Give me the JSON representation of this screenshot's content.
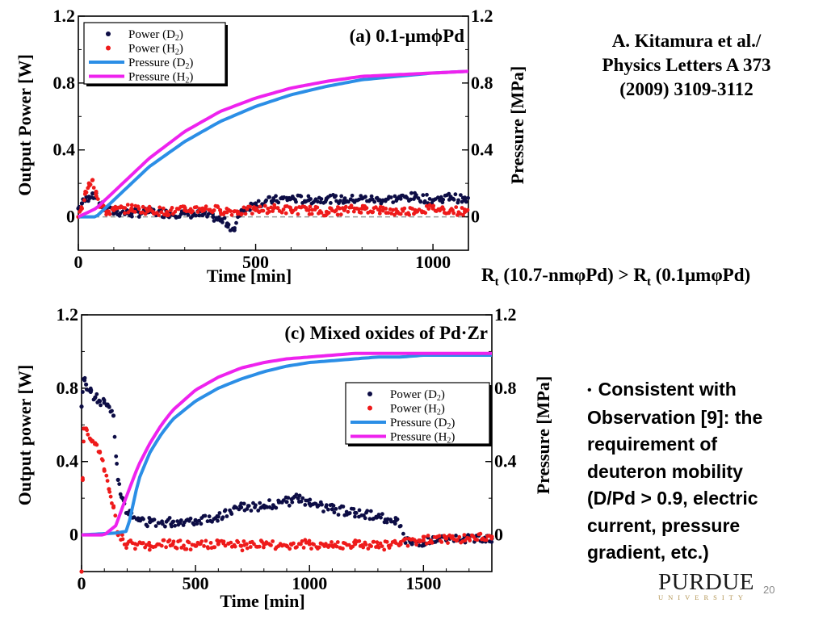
{
  "citation": {
    "line1": "A. Kitamura et al./",
    "line2": "Physics Letters A 373",
    "line3": "(2009) 3109-3112"
  },
  "comparison": {
    "r1": "R",
    "sub1": "t",
    "rest1": " (10.7-nmφPd) > R",
    "sub2": "t",
    "rest2": " (0.1μmφPd)"
  },
  "bullet": {
    "dot": "•",
    "lines": [
      "Consistent with",
      "Observation [9]: the",
      "requirement of",
      "deuteron mobility",
      "(D/Pd > 0.9,  electric",
      "current, pressure",
      "gradient, etc.)"
    ]
  },
  "logo": {
    "name": "PURDUE",
    "sub": "UNIVERSITY"
  },
  "page_number": "20",
  "colors": {
    "power_d2": "#0d0d45",
    "power_h2": "#ee1a1a",
    "pressure_d2": "#2b8ee6",
    "pressure_h2": "#ee22ee"
  },
  "chart_data": [
    {
      "type": "scatter",
      "title": "(a) 0.1-μmϕPd",
      "xlabel": "Time [min]",
      "ylabel": "Output Power [W]",
      "ylabel_right": "Pressure [MPa]",
      "xlim": [
        0,
        1100
      ],
      "ylim": [
        -0.2,
        1.2
      ],
      "xticks": [
        "0",
        "500",
        "1000"
      ],
      "xtick_values": [
        0,
        500,
        1000
      ],
      "yticks": [
        "0",
        "0.4",
        "0.8",
        "1.2"
      ],
      "ytick_values": [
        0,
        0.4,
        0.8,
        1.2
      ],
      "yticks_right": [
        "0",
        "0.4",
        "0.8",
        "1.2"
      ],
      "legend": {
        "placement": "top-left",
        "entries": [
          {
            "main": "Power (D",
            "sub": "2",
            "end": ")",
            "kind": "dot",
            "color": "#0d0d45"
          },
          {
            "main": "Power (H",
            "sub": "2",
            "end": ")",
            "kind": "dot",
            "color": "#ee1a1a"
          },
          {
            "main": "Pressure (D",
            "sub": "2",
            "end": ")",
            "kind": "line",
            "color": "#2b8ee6"
          },
          {
            "main": "Pressure (H",
            "sub": "2",
            "end": ")",
            "kind": "line",
            "color": "#ee22ee"
          }
        ]
      },
      "zero_line": true,
      "series": [
        {
          "name": "Power (D2)",
          "kind": "scatter",
          "color": "#0d0d45",
          "x": [
            0,
            10,
            20,
            30,
            40,
            50,
            60,
            80,
            100,
            150,
            200,
            250,
            300,
            350,
            380,
            400,
            420,
            440,
            460,
            500,
            550,
            600,
            650,
            700,
            750,
            800,
            850,
            900,
            950,
            1000,
            1050,
            1090
          ],
          "y": [
            0.05,
            0.08,
            0.1,
            0.12,
            0.14,
            0.12,
            0.08,
            0.04,
            0.03,
            0.02,
            0.03,
            0.02,
            0.02,
            0.01,
            0.0,
            -0.02,
            -0.04,
            -0.08,
            0.04,
            0.08,
            0.1,
            0.11,
            0.1,
            0.11,
            0.1,
            0.11,
            0.1,
            0.11,
            0.12,
            0.1,
            0.12,
            0.1
          ]
        },
        {
          "name": "Power (H2)",
          "kind": "scatter",
          "color": "#ee1a1a",
          "x": [
            0,
            10,
            20,
            30,
            40,
            50,
            60,
            80,
            100,
            150,
            200,
            250,
            300,
            350,
            400,
            450,
            500,
            550,
            600,
            650,
            700,
            750,
            800,
            850,
            900,
            950,
            1000,
            1050,
            1090
          ],
          "y": [
            0.0,
            0.05,
            0.15,
            0.2,
            0.22,
            0.15,
            0.06,
            0.03,
            0.04,
            0.05,
            0.04,
            0.03,
            0.04,
            0.05,
            0.04,
            0.03,
            0.04,
            0.05,
            0.04,
            0.04,
            0.03,
            0.04,
            0.05,
            0.04,
            0.03,
            0.04,
            0.05,
            0.04,
            0.03
          ]
        },
        {
          "name": "Pressure (D2)",
          "kind": "line",
          "color": "#2b8ee6",
          "x": [
            0,
            50,
            100,
            200,
            300,
            400,
            500,
            600,
            700,
            800,
            900,
            1000,
            1100
          ],
          "y": [
            0.0,
            0.0,
            0.1,
            0.3,
            0.45,
            0.57,
            0.66,
            0.73,
            0.78,
            0.82,
            0.84,
            0.86,
            0.87
          ]
        },
        {
          "name": "Pressure (H2)",
          "kind": "line",
          "color": "#ee22ee",
          "x": [
            0,
            50,
            100,
            200,
            300,
            400,
            500,
            600,
            700,
            800,
            900,
            1000,
            1100
          ],
          "y": [
            0.0,
            0.05,
            0.15,
            0.35,
            0.51,
            0.63,
            0.71,
            0.77,
            0.81,
            0.84,
            0.85,
            0.86,
            0.87
          ]
        }
      ]
    },
    {
      "type": "scatter",
      "title": "(c) Mixed oxides of Pd·Zr",
      "xlabel": "Time [min]",
      "ylabel": "Output power [W]",
      "ylabel_right": "Pressure [MPa]",
      "xlim": [
        0,
        1800
      ],
      "ylim": [
        -0.2,
        1.2
      ],
      "xticks": [
        "0",
        "500",
        "1000",
        "1500"
      ],
      "xtick_values": [
        0,
        500,
        1000,
        1500
      ],
      "yticks": [
        "0",
        "0.4",
        "0.8",
        "1.2"
      ],
      "ytick_values": [
        0,
        0.4,
        0.8,
        1.2
      ],
      "yticks_right": [
        "0",
        "0.4",
        "0.8",
        "1.2"
      ],
      "legend": {
        "placement": "right",
        "entries": [
          {
            "main": "Power (D",
            "sub": "2",
            "end": ")",
            "kind": "dot",
            "color": "#0d0d45"
          },
          {
            "main": "Power (H",
            "sub": "2",
            "end": ")",
            "kind": "dot",
            "color": "#ee1a1a"
          },
          {
            "main": "Pressure (D",
            "sub": "2",
            "end": ")",
            "kind": "line",
            "color": "#2b8ee6"
          },
          {
            "main": "Pressure (H",
            "sub": "2",
            "end": ")",
            "kind": "line",
            "color": "#ee22ee"
          }
        ]
      },
      "zero_line": false,
      "series": [
        {
          "name": "Power (D2)",
          "kind": "scatter",
          "color": "#0d0d45",
          "x": [
            0,
            10,
            20,
            40,
            60,
            80,
            100,
            120,
            140,
            160,
            180,
            200,
            250,
            300,
            400,
            500,
            600,
            700,
            800,
            900,
            950,
            1000,
            1100,
            1200,
            1300,
            1380,
            1420,
            1450,
            1500,
            1600,
            1700,
            1800
          ],
          "y": [
            0.7,
            0.85,
            0.82,
            0.78,
            0.75,
            0.73,
            0.72,
            0.7,
            0.65,
            0.3,
            0.2,
            0.12,
            0.08,
            0.07,
            0.07,
            0.08,
            0.1,
            0.15,
            0.16,
            0.18,
            0.2,
            0.17,
            0.14,
            0.12,
            0.1,
            0.08,
            -0.02,
            -0.05,
            -0.04,
            -0.03,
            -0.02,
            -0.02
          ]
        },
        {
          "name": "Power (H2)",
          "kind": "scatter",
          "color": "#ee1a1a",
          "x": [
            0,
            5,
            10,
            20,
            40,
            60,
            80,
            100,
            120,
            140,
            160,
            200,
            300,
            400,
            500,
            600,
            700,
            800,
            900,
            1000,
            1100,
            1200,
            1300,
            1400,
            1500,
            1600,
            1700,
            1800
          ],
          "y": [
            -0.2,
            0.3,
            0.58,
            0.58,
            0.52,
            0.5,
            0.45,
            0.35,
            0.25,
            0.15,
            0.0,
            -0.05,
            -0.06,
            -0.05,
            -0.06,
            -0.05,
            -0.06,
            -0.05,
            -0.06,
            -0.05,
            -0.06,
            -0.05,
            -0.06,
            -0.05,
            -0.03,
            -0.02,
            -0.02,
            -0.01
          ]
        },
        {
          "name": "Pressure (D2)",
          "kind": "line",
          "color": "#2b8ee6",
          "x": [
            0,
            150,
            200,
            250,
            300,
            350,
            400,
            500,
            600,
            700,
            800,
            900,
            1000,
            1100,
            1200,
            1300,
            1400,
            1500,
            1600,
            1700,
            1800
          ],
          "y": [
            0.0,
            0.01,
            0.02,
            0.3,
            0.45,
            0.55,
            0.63,
            0.73,
            0.8,
            0.85,
            0.89,
            0.92,
            0.94,
            0.95,
            0.96,
            0.97,
            0.97,
            0.98,
            0.98,
            0.98,
            0.98
          ]
        },
        {
          "name": "Pressure (H2)",
          "kind": "line",
          "color": "#ee22ee",
          "x": [
            0,
            100,
            150,
            200,
            250,
            300,
            350,
            400,
            500,
            600,
            700,
            800,
            900,
            1000,
            1100,
            1200,
            1300,
            1400,
            1500,
            1600,
            1700,
            1800
          ],
          "y": [
            0.0,
            0.0,
            0.05,
            0.22,
            0.38,
            0.5,
            0.6,
            0.68,
            0.79,
            0.86,
            0.91,
            0.94,
            0.96,
            0.97,
            0.98,
            0.99,
            0.99,
            0.99,
            0.99,
            0.99,
            0.99,
            0.99
          ]
        }
      ]
    }
  ]
}
